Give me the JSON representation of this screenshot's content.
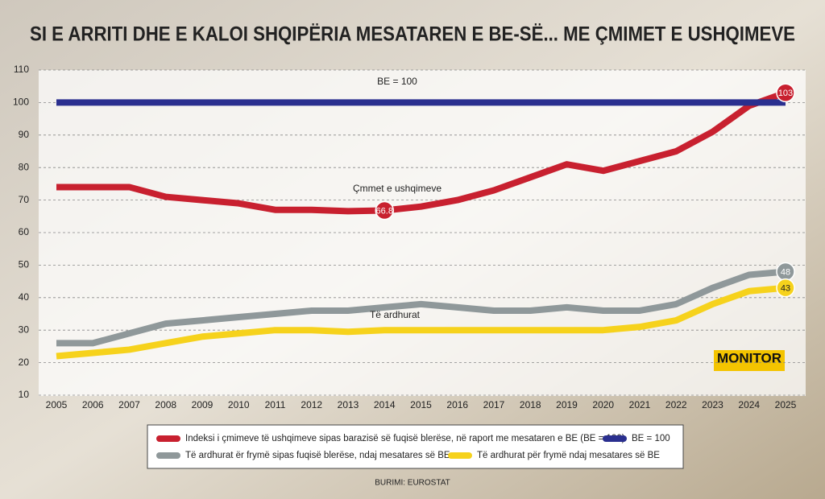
{
  "chart_data": {
    "type": "line",
    "title": "SI E ARRITI DHE E KALOI SHQIPËRIA MESATAREN E BE-SË... ME ÇMIMET E USHQIMEVE",
    "categories": [
      "2005",
      "2006",
      "2007",
      "2008",
      "2009",
      "2010",
      "2011",
      "2012",
      "2013",
      "2014",
      "2015",
      "2016",
      "2017",
      "2018",
      "2019",
      "2020",
      "2021",
      "2022",
      "2023",
      "2024",
      "2025"
    ],
    "ylim": [
      10,
      110
    ],
    "yticks": [
      10,
      20,
      30,
      40,
      50,
      60,
      70,
      80,
      90,
      100,
      110
    ],
    "grid": true,
    "series": [
      {
        "name": "Indeksi i çmimeve të ushqimeve sipas barazisë së fuqisë blerëse, në raport me mesataren e BE (BE = 100)",
        "color": "#c8202f",
        "values": [
          74,
          74,
          74,
          71,
          70,
          69,
          67,
          67,
          66.6,
          66.8,
          68,
          70,
          73,
          77,
          81,
          79,
          82,
          85,
          91,
          99,
          103
        ],
        "value_labels": [
          null,
          null,
          null,
          null,
          null,
          null,
          null,
          null,
          null,
          "66.8",
          null,
          null,
          null,
          null,
          null,
          null,
          null,
          null,
          null,
          null,
          "103"
        ]
      },
      {
        "name": "BE = 100",
        "color": "#2a2f8f",
        "values": [
          100,
          100,
          100,
          100,
          100,
          100,
          100,
          100,
          100,
          100,
          100,
          100,
          100,
          100,
          100,
          100,
          100,
          100,
          100,
          100,
          100
        ]
      },
      {
        "name": "Të ardhurat ër frymë sipas fuqisë blerëse, ndaj mesatares së BE",
        "color": "#8f989a",
        "values": [
          26,
          26,
          29,
          32,
          33,
          34,
          35,
          36,
          36,
          37,
          38,
          37,
          36,
          36,
          37,
          36,
          36,
          38,
          43,
          47,
          48
        ],
        "value_labels": [
          null,
          null,
          null,
          null,
          null,
          null,
          null,
          null,
          null,
          null,
          null,
          null,
          null,
          null,
          null,
          null,
          null,
          null,
          null,
          null,
          "48"
        ]
      },
      {
        "name": "Të ardhurat për frymë ndaj mesatares së BE",
        "color": "#f6d21c",
        "values": [
          22,
          23,
          24,
          26,
          28,
          29,
          30,
          30,
          29.5,
          30,
          30,
          30,
          30,
          30,
          30,
          30,
          31,
          33,
          38,
          42,
          43
        ],
        "value_labels": [
          null,
          null,
          null,
          null,
          null,
          null,
          null,
          null,
          null,
          null,
          null,
          null,
          null,
          null,
          null,
          null,
          null,
          null,
          null,
          null,
          "43"
        ]
      }
    ],
    "annotations": [
      "BE = 100",
      "Çmmet e ushqimeve",
      "Të ardhurat"
    ],
    "source": "BURIMI: EUROSTAT",
    "logo": "MONITOR"
  }
}
